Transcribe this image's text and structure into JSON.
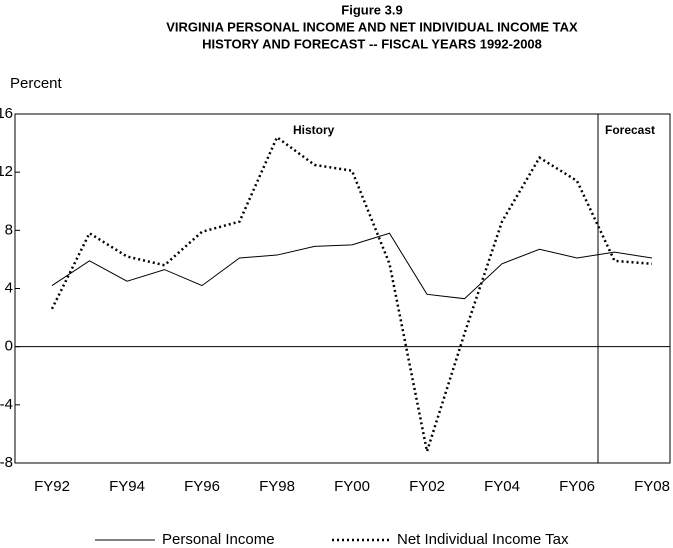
{
  "chart_data": {
    "type": "line",
    "title": "Figure 3.9",
    "subtitle": [
      "VIRGINIA PERSONAL INCOME AND NET INDIVIDUAL INCOME TAX",
      "HISTORY AND FORECAST -- FISCAL YEARS 1992-2008"
    ],
    "y_label": "Percent",
    "annotations": [
      "History",
      "Forecast"
    ],
    "categories": [
      "FY92",
      null,
      "FY94",
      null,
      "FY96",
      null,
      "FY98",
      null,
      "FY00",
      null,
      "FY02",
      null,
      "FY04",
      null,
      "FY06",
      null,
      "FY08"
    ],
    "series": [
      {
        "name": "Personal Income",
        "color": "#000000",
        "style": "solid",
        "values": [
          4.2,
          5.9,
          4.5,
          5.3,
          4.2,
          6.1,
          6.3,
          6.9,
          7.0,
          7.8,
          3.6,
          3.3,
          5.7,
          6.7,
          6.1,
          6.5,
          6.1
        ]
      },
      {
        "name": "Net Individual Income Tax",
        "color": "#000000",
        "style": "dotted",
        "values": [
          2.6,
          7.8,
          6.2,
          5.6,
          7.9,
          8.6,
          14.4,
          12.5,
          12.1,
          5.7,
          -7.2,
          0.9,
          8.6,
          13.0,
          11.4,
          5.9,
          5.7
        ]
      }
    ],
    "ylim": [
      -8,
      16
    ],
    "yticks": [
      16,
      12,
      8,
      4,
      0,
      -4,
      -8
    ],
    "grid": false
  }
}
